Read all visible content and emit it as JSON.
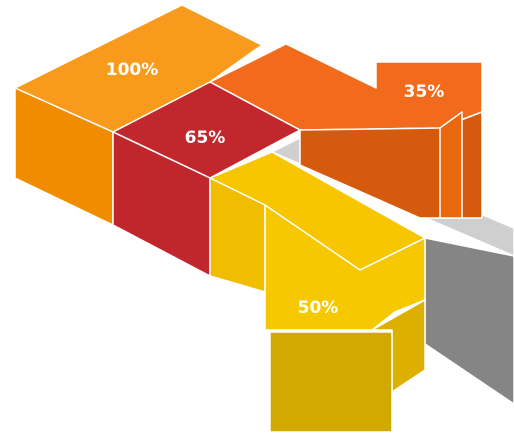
{
  "blocks": [
    {
      "label": "100%"
    },
    {
      "label": "65%"
    },
    {
      "label": "35%"
    },
    {
      "label": "50%"
    }
  ]
}
